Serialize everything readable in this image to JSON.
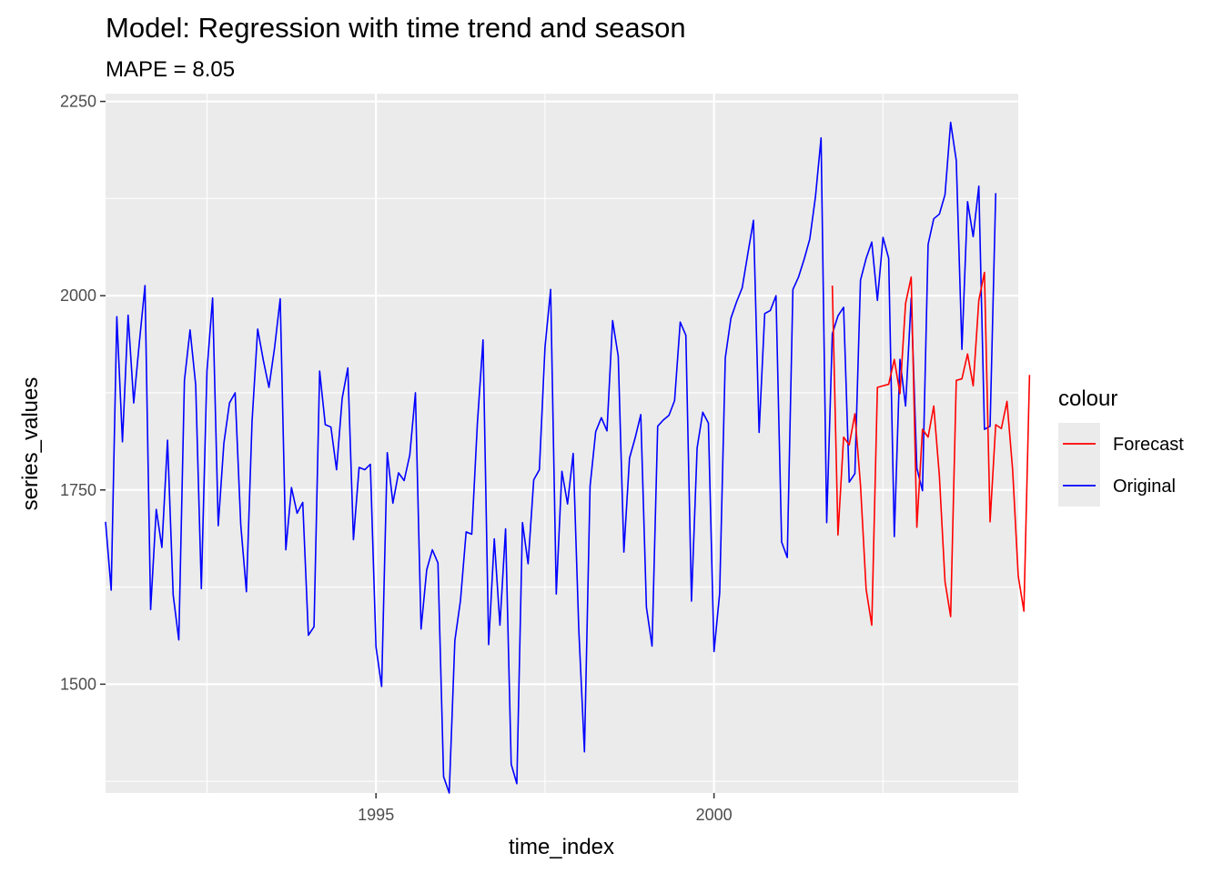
{
  "chart_data": {
    "type": "line",
    "title": "Model:  Regression with time trend and season",
    "subtitle": "MAPE = 8.05",
    "xlabel": "time_index",
    "ylabel": "series_values",
    "xlim": [
      1991.0,
      2004.5
    ],
    "ylim": [
      1360,
      2260
    ],
    "x_ticks": [
      1995,
      2000
    ],
    "x_tick_labels": [
      "1995",
      "2000"
    ],
    "x_minor_ticks": [
      1992.5,
      1997.5,
      2002.5
    ],
    "y_ticks": [
      1500,
      1750,
      2000,
      2250
    ],
    "y_tick_labels": [
      "1500",
      "1750",
      "2000",
      "2250"
    ],
    "y_minor_ticks": [
      1375,
      1625,
      1875,
      2125
    ],
    "grid": true,
    "panel_background": "#ebebeb",
    "legend": {
      "title": "colour",
      "position": "right",
      "entries": [
        {
          "label": "Forecast",
          "color": "#ff0000"
        },
        {
          "label": "Original",
          "color": "#0000ff"
        }
      ]
    },
    "x_start": 1991.0,
    "x_step": 0.0833333,
    "series": [
      {
        "name": "Original",
        "color": "#0000ff",
        "start_index": 0,
        "values": [
          1709,
          1621,
          1973,
          1812,
          1975,
          1862,
          1940,
          2013,
          1596,
          1725,
          1676,
          1814,
          1615,
          1557,
          1891,
          1956,
          1885,
          1623,
          1903,
          1997,
          1704,
          1810,
          1862,
          1875,
          1705,
          1619,
          1838,
          1957,
          1917,
          1882,
          1933,
          1996,
          1673,
          1753,
          1720,
          1734,
          1563,
          1574,
          1903,
          1834,
          1831,
          1776,
          1868,
          1907,
          1686,
          1779,
          1776,
          1783,
          1548,
          1497,
          1798,
          1733,
          1772,
          1762,
          1795,
          1875,
          1571,
          1647,
          1673,
          1656,
          1381,
          1360,
          1556,
          1608,
          1696,
          1693,
          1836,
          1943,
          1551,
          1687,
          1576,
          1700,
          1397,
          1372,
          1708,
          1655,
          1763,
          1776,
          1934,
          2008,
          1616,
          1774,
          1732,
          1797,
          1570,
          1413,
          1755,
          1825,
          1843,
          1826,
          1968,
          1922,
          1670,
          1791,
          1817,
          1847,
          1599,
          1549,
          1832,
          1840,
          1846,
          1865,
          1966,
          1949,
          1607,
          1804,
          1850,
          1836,
          1542,
          1617,
          1920,
          1971,
          1992,
          2010,
          2054,
          2097,
          1824,
          1977,
          1981,
          2000,
          1683,
          1663,
          2008,
          2024,
          2047,
          2073,
          2127,
          2203,
          1708,
          1951,
          1974,
          1985,
          1760,
          1771,
          2020,
          2048,
          2069,
          1994,
          2075,
          2048,
          1690,
          1918,
          1858,
          1997,
          1778,
          1749,
          2066,
          2099,
          2105,
          2130,
          2223,
          2174,
          1931,
          2121,
          2076,
          2141,
          1828,
          1832,
          2132
        ]
      },
      {
        "name": "Forecast",
        "color": "#ff0000",
        "start_index": 129,
        "values": [
          2013,
          1692,
          1818,
          1808,
          1848,
          1756,
          1622,
          1576,
          1882,
          1884,
          1886,
          1918,
          1874,
          1990,
          2024,
          1702,
          1828,
          1818,
          1858,
          1768,
          1632,
          1587,
          1891,
          1893,
          1925,
          1884,
          1994,
          2030,
          1709,
          1834,
          1829,
          1864,
          1776,
          1639,
          1594,
          1898
        ]
      }
    ]
  }
}
